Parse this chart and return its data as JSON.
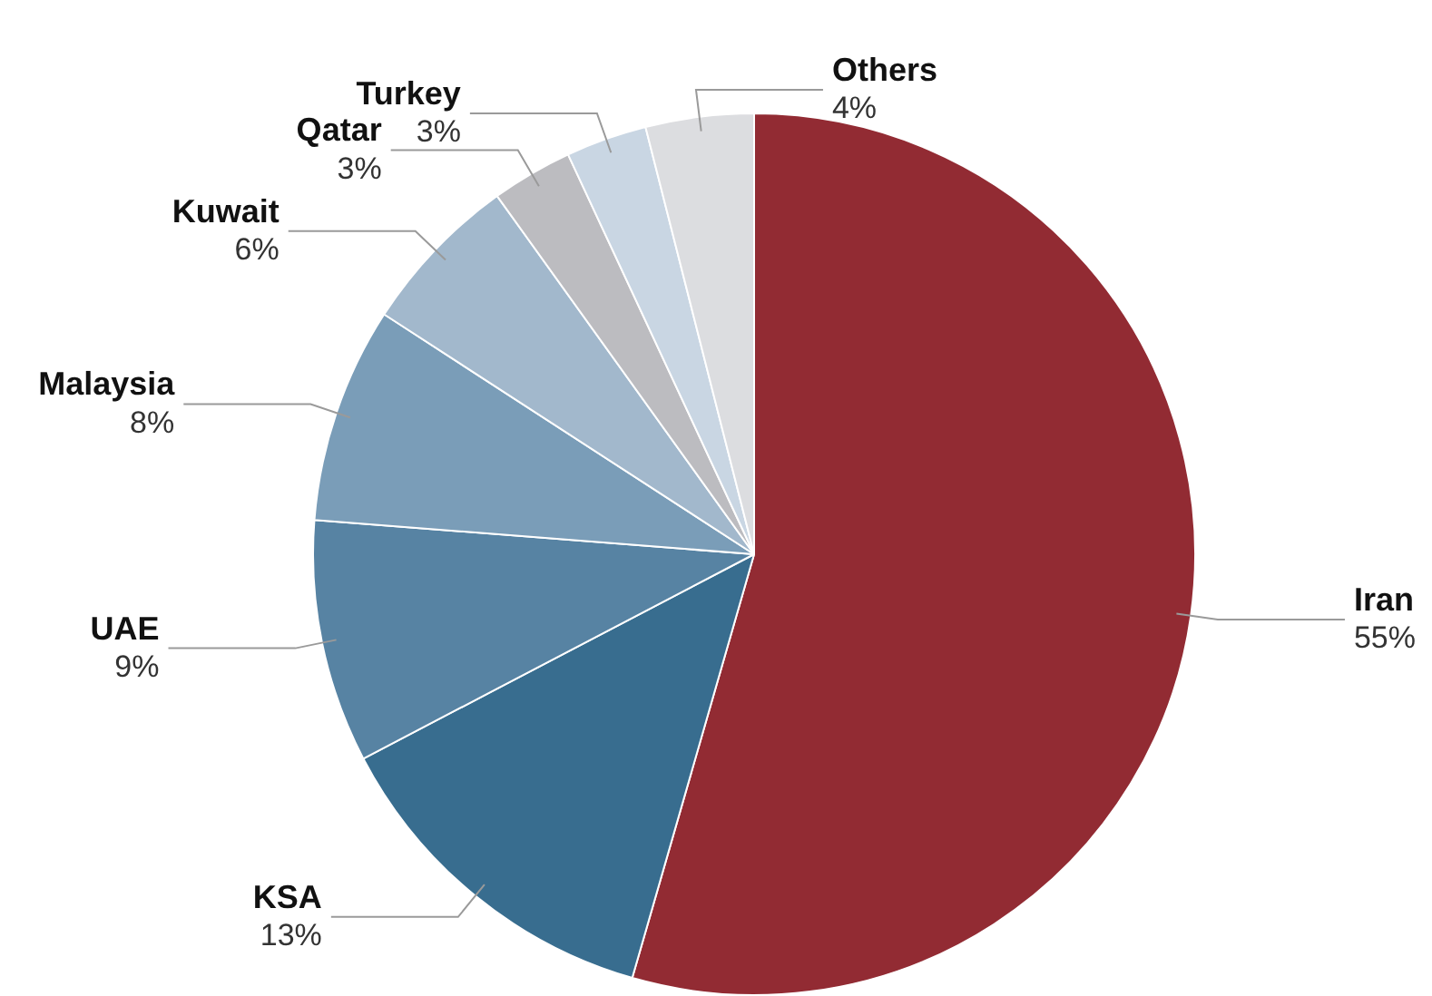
{
  "chart_data": {
    "type": "pie",
    "categories": [
      "Iran",
      "KSA",
      "UAE",
      "Malaysia",
      "Kuwait",
      "Qatar",
      "Turkey",
      "Others"
    ],
    "values": [
      55,
      13,
      9,
      8,
      6,
      3,
      3,
      4
    ],
    "value_labels": [
      "55%",
      "13%",
      "9%",
      "8%",
      "6%",
      "3%",
      "3%",
      "4%"
    ],
    "colors": [
      "#922b33",
      "#386d8f",
      "#5783a3",
      "#7a9db8",
      "#a2b8cc",
      "#bcbcc0",
      "#c9d6e3",
      "#dcdde0"
    ],
    "legend": false
  }
}
